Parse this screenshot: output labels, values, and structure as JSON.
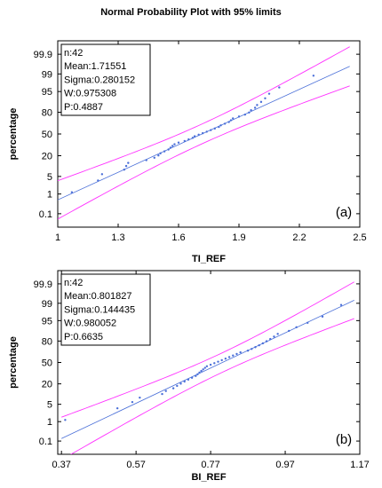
{
  "figure": {
    "title": "Normal Probability Plot with 95% limits",
    "colors": {
      "points": "#4a6fd8",
      "fit_line": "#4a6fd8",
      "limits": "#ff33ff",
      "frame": "#000000",
      "background": "#ffffff"
    }
  },
  "chart_data": [
    {
      "type": "scatter",
      "panel_label": "(a)",
      "xlabel": "TI_REF",
      "ylabel": "percentage",
      "xlim": [
        1,
        2.5
      ],
      "x_ticks": [
        1,
        1.3,
        1.6,
        1.9,
        2.2,
        2.5
      ],
      "x_tick_labels": [
        "1",
        "1.3",
        "1.6",
        "1.9",
        "2.2",
        "2.5"
      ],
      "y_scale": "normal probability",
      "y_ticks": [
        0.1,
        1,
        5,
        20,
        50,
        80,
        95,
        99,
        99.9
      ],
      "y_tick_labels": [
        "0.1",
        "1",
        "5",
        "20",
        "50",
        "80",
        "95",
        "99",
        "99.9"
      ],
      "stats": [
        "n:42",
        "Mean:1.71551",
        "Sigma:0.280152",
        "W:0.975308",
        "P:0.4887"
      ],
      "mean": 1.71551,
      "sigma": 0.280152,
      "limit_offset_percentile_z": 0.9,
      "x_min_line": 1.0,
      "x_max_line": 2.45,
      "points_x": [
        1.07,
        1.2,
        1.22,
        1.33,
        1.34,
        1.35,
        1.44,
        1.48,
        1.5,
        1.51,
        1.53,
        1.55,
        1.56,
        1.57,
        1.58,
        1.6,
        1.63,
        1.65,
        1.67,
        1.68,
        1.7,
        1.72,
        1.74,
        1.76,
        1.78,
        1.8,
        1.81,
        1.83,
        1.85,
        1.86,
        1.87,
        1.9,
        1.93,
        1.95,
        1.96,
        1.98,
        1.99,
        2.01,
        2.03,
        2.05,
        2.1,
        2.27
      ],
      "grid": false,
      "legend": "none"
    },
    {
      "type": "scatter",
      "panel_label": "(b)",
      "xlabel": "BI_REF",
      "ylabel": "percentage",
      "xlim": [
        0.36,
        1.17
      ],
      "x_ticks": [
        0.37,
        0.57,
        0.77,
        0.97,
        1.17
      ],
      "x_tick_labels": [
        "0.37",
        "0.57",
        "0.77",
        "0.97",
        "1.17"
      ],
      "y_scale": "normal probability",
      "y_ticks": [
        0.1,
        1,
        5,
        20,
        50,
        80,
        95,
        99,
        99.9
      ],
      "y_tick_labels": [
        "0.1",
        "1",
        "5",
        "20",
        "50",
        "80",
        "95",
        "99",
        "99.9"
      ],
      "stats": [
        "n:42",
        "Mean:0.801827",
        "Sigma:0.144435",
        "W:0.980052",
        "P:0.6635"
      ],
      "mean": 0.801827,
      "sigma": 0.144435,
      "limit_offset_percentile_z": 0.9,
      "x_min_line": 0.37,
      "x_max_line": 1.155,
      "points_x": [
        0.38,
        0.52,
        0.56,
        0.58,
        0.64,
        0.65,
        0.67,
        0.68,
        0.69,
        0.7,
        0.71,
        0.72,
        0.73,
        0.735,
        0.74,
        0.745,
        0.75,
        0.755,
        0.76,
        0.77,
        0.78,
        0.79,
        0.8,
        0.81,
        0.82,
        0.83,
        0.84,
        0.85,
        0.87,
        0.88,
        0.89,
        0.9,
        0.91,
        0.92,
        0.93,
        0.94,
        0.95,
        0.98,
        1.0,
        1.03,
        1.07,
        1.12
      ],
      "grid": false,
      "legend": "none"
    }
  ]
}
